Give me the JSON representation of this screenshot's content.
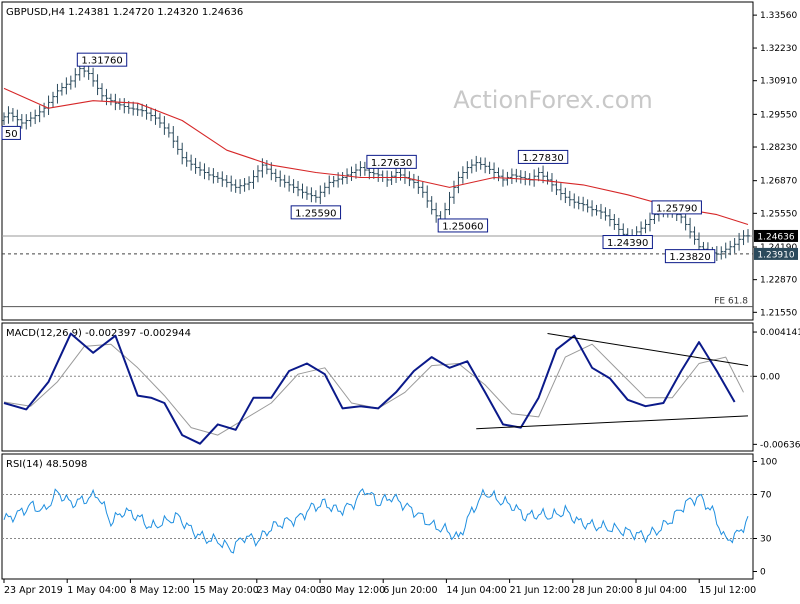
{
  "watermark": "ActionForex.com",
  "colors": {
    "price": "#2b4a5c",
    "ma": "#d62728",
    "macd": "#0b1a8a",
    "signal": "#9a9a9a",
    "rsi": "#1f8fe0",
    "label_border": "#0b1a8a",
    "hline": "#999999"
  },
  "chart_data": [
    {
      "panel": "price",
      "type": "line",
      "title": "GBPUSD,H4  1.24381 1.24720 1.24320 1.24636",
      "yticks": [
        1.3356,
        1.3223,
        1.3091,
        1.2955,
        1.2823,
        1.2687,
        1.2555,
        1.2419,
        1.2287,
        1.2155
      ],
      "ylim": [
        1.2128,
        1.3405
      ],
      "x_labels": [
        "23 Apr 2019",
        "1 May 04:00",
        "8 May 12:00",
        "15 May 20:00",
        "23 May 04:00",
        "30 May 12:00",
        "6 Jun 20:00",
        "14 Jun 04:00",
        "21 Jun 12:00",
        "28 Jun 20:00",
        "8 Jul 04:00",
        "15 Jul 12:00"
      ],
      "price_series": {
        "name": "GBPUSD",
        "x": [
          0,
          2,
          5,
          8,
          10,
          13,
          16,
          18,
          20,
          23,
          26,
          29,
          32,
          35,
          38,
          41,
          44,
          47,
          50,
          53,
          56,
          59,
          62,
          65,
          68,
          71,
          74,
          77,
          79,
          81,
          83,
          85,
          87,
          89,
          91,
          93,
          95,
          97,
          99,
          101,
          103,
          105,
          107,
          109,
          111,
          113,
          115,
          117,
          119,
          121,
          123,
          125,
          127,
          129,
          131,
          133,
          135,
          137,
          139,
          141,
          143,
          145,
          147,
          149,
          151,
          153,
          155,
          157,
          159,
          161,
          163,
          165,
          166,
          167
        ],
        "values": [
          1.293,
          1.296,
          1.292,
          1.295,
          1.298,
          1.305,
          1.309,
          1.314,
          1.312,
          1.303,
          1.3,
          1.298,
          1.297,
          1.294,
          1.288,
          1.278,
          1.274,
          1.271,
          1.269,
          1.266,
          1.268,
          1.275,
          1.27,
          1.267,
          1.264,
          1.262,
          1.268,
          1.27,
          1.272,
          1.274,
          1.272,
          1.271,
          1.269,
          1.272,
          1.27,
          1.268,
          1.264,
          1.257,
          1.252,
          1.262,
          1.27,
          1.274,
          1.276,
          1.2745,
          1.272,
          1.269,
          1.271,
          1.27,
          1.269,
          1.272,
          1.269,
          1.265,
          1.262,
          1.26,
          1.259,
          1.257,
          1.256,
          1.253,
          1.249,
          1.245,
          1.248,
          1.251,
          1.255,
          1.257,
          1.256,
          1.254,
          1.248,
          1.242,
          1.24,
          1.239,
          1.241,
          1.243,
          1.245,
          1.2464
        ]
      },
      "ma_series": {
        "name": "MA",
        "x": [
          0,
          10,
          20,
          30,
          40,
          50,
          60,
          70,
          80,
          90,
          100,
          110,
          120,
          130,
          140,
          150,
          160,
          167
        ],
        "values": [
          1.306,
          1.298,
          1.301,
          1.3,
          1.293,
          1.281,
          1.275,
          1.272,
          1.27,
          1.27,
          1.266,
          1.27,
          1.269,
          1.267,
          1.263,
          1.258,
          1.255,
          1.251
        ]
      },
      "annotations": [
        {
          "label": "1.31760",
          "x": 22,
          "y": 1.3176
        },
        {
          "label": "1.27630",
          "x": 87,
          "y": 1.2763
        },
        {
          "label": "1.25590",
          "x": 70,
          "y": 1.2559
        },
        {
          "label": "1.27830",
          "x": 121,
          "y": 1.2783
        },
        {
          "label": "1.25060",
          "x": 103,
          "y": 1.2506
        },
        {
          "label": "1.25790",
          "x": 151,
          "y": 1.2579
        },
        {
          "label": "1.24390",
          "x": 140,
          "y": 1.2439
        },
        {
          "label": "1.23820",
          "x": 154,
          "y": 1.2382
        },
        {
          "label": "50",
          "x": 0,
          "y": 1.288
        }
      ],
      "current": {
        "label": "1.24636",
        "value": 1.24636
      },
      "support": {
        "label": "1.23910",
        "value": 1.2391
      },
      "fe_label": "FE 61.8",
      "fe_value": 1.2178
    },
    {
      "panel": "macd",
      "type": "line",
      "title": "MACD(12,26,9) -0.002397 -0.002944",
      "yticks": [
        "0.004141",
        "0.00",
        "-0.006365"
      ],
      "ylim": [
        -0.0068,
        0.0048
      ],
      "macd_series": {
        "name": "MACD",
        "x": [
          0,
          5,
          10,
          15,
          20,
          25,
          30,
          33,
          36,
          40,
          44,
          48,
          52,
          56,
          60,
          64,
          68,
          72,
          76,
          80,
          84,
          88,
          92,
          96,
          100,
          104,
          108,
          112,
          116,
          120,
          124,
          128,
          132,
          136,
          140,
          144,
          148,
          152,
          156,
          160,
          164
        ],
        "values": [
          -0.0025,
          -0.0031,
          -0.0005,
          0.004,
          0.0022,
          0.0038,
          -0.0018,
          -0.002,
          -0.0025,
          -0.0055,
          -0.0063,
          -0.0045,
          -0.005,
          -0.002,
          -0.002,
          0.0005,
          0.0012,
          0.0002,
          -0.003,
          -0.0028,
          -0.003,
          -0.0015,
          0.0005,
          0.0018,
          0.0008,
          0.0014,
          -0.0015,
          -0.0045,
          -0.0048,
          -0.002,
          0.0025,
          0.0038,
          0.0008,
          -0.0002,
          -0.0022,
          -0.0028,
          -0.0025,
          0.0005,
          0.0032,
          0.0005,
          -0.0024
        ]
      },
      "signal_series": {
        "name": "Signal",
        "x": [
          0,
          6,
          12,
          18,
          24,
          30,
          36,
          42,
          48,
          54,
          60,
          66,
          72,
          78,
          84,
          90,
          96,
          102,
          108,
          114,
          120,
          126,
          132,
          138,
          144,
          150,
          156,
          162,
          166
        ],
        "values": [
          -0.0024,
          -0.0028,
          -0.0005,
          0.0028,
          0.003,
          0.0008,
          -0.0018,
          -0.0048,
          -0.0055,
          -0.004,
          -0.0025,
          0.0002,
          0.0008,
          -0.0025,
          -0.003,
          -0.0015,
          0.001,
          0.0012,
          -0.0008,
          -0.0035,
          -0.0038,
          0.0018,
          0.003,
          0.0005,
          -0.002,
          -0.002,
          0.0012,
          0.0018,
          -0.0015
        ]
      },
      "trendlines": [
        {
          "x": [
            122,
            167
          ],
          "values": [
            0.004,
            0.001
          ]
        },
        {
          "x": [
            106,
            167
          ],
          "values": [
            -0.0049,
            -0.0037
          ]
        }
      ]
    },
    {
      "panel": "rsi",
      "type": "line",
      "title": "RSI(14) 48.5098",
      "yticks": [
        100,
        70,
        30,
        0
      ],
      "ylim": [
        -5,
        105
      ],
      "rsi_series": {
        "name": "RSI",
        "x": [
          0,
          3,
          6,
          9,
          12,
          15,
          18,
          21,
          24,
          27,
          30,
          33,
          36,
          39,
          42,
          45,
          48,
          51,
          54,
          57,
          60,
          63,
          66,
          69,
          72,
          75,
          78,
          81,
          84,
          87,
          90,
          93,
          96,
          99,
          102,
          105,
          108,
          111,
          114,
          117,
          120,
          123,
          126,
          129,
          132,
          135,
          138,
          141,
          144,
          147,
          150,
          153,
          156,
          159,
          162,
          165,
          167
        ],
        "values": [
          47,
          52,
          60,
          55,
          72,
          62,
          65,
          70,
          45,
          55,
          50,
          40,
          45,
          50,
          38,
          30,
          28,
          20,
          32,
          28,
          40,
          45,
          48,
          58,
          62,
          55,
          60,
          75,
          62,
          68,
          60,
          52,
          42,
          38,
          30,
          55,
          72,
          65,
          60,
          50,
          52,
          50,
          55,
          45,
          42,
          40,
          38,
          35,
          32,
          38,
          48,
          62,
          68,
          55,
          28,
          35,
          48
        ]
      }
    }
  ]
}
